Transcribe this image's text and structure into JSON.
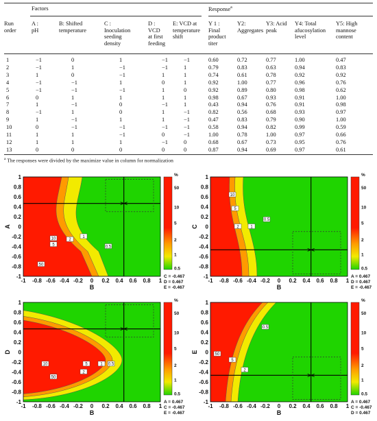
{
  "table": {
    "group_factors": "Factors",
    "group_response": "Response",
    "group_response_sup": "a",
    "col_run": [
      "Run",
      "order"
    ],
    "factors": [
      [
        "A :",
        "pH"
      ],
      [
        "B: Shifted",
        "temperature"
      ],
      [
        "C :",
        "Inoculation",
        "seeding",
        "density"
      ],
      [
        "D :",
        "VCD",
        "at first",
        "feeding"
      ],
      [
        "E: VCD at",
        "temperature",
        "shift"
      ]
    ],
    "responses": [
      [
        "Y 1 :",
        "Final",
        "product",
        "titer"
      ],
      [
        "Y2:",
        "Aggregates"
      ],
      [
        "Y3: Acid",
        "peak"
      ],
      [
        "Y4: Total",
        "afucosylation",
        "level"
      ],
      [
        "Y5: High",
        "mannose",
        "content"
      ]
    ],
    "rows": [
      [
        "1",
        "−1",
        "0",
        "1",
        "−1",
        "−1",
        "0.60",
        "0.72",
        "0.77",
        "1.00",
        "0.47"
      ],
      [
        "2",
        "−1",
        "1",
        "−1",
        "−1",
        "1",
        "0.79",
        "0.83",
        "0.63",
        "0.94",
        "0.83"
      ],
      [
        "3",
        "1",
        "0",
        "−1",
        "1",
        "1",
        "0.74",
        "0.61",
        "0.78",
        "0.92",
        "0.92"
      ],
      [
        "4",
        "−1",
        "−1",
        "1",
        "0",
        "1",
        "0.92",
        "1.00",
        "0.77",
        "0.96",
        "0.76"
      ],
      [
        "5",
        "−1",
        "−1",
        "−1",
        "1",
        "0",
        "0.92",
        "0.89",
        "0.80",
        "0.98",
        "0.62"
      ],
      [
        "6",
        "0",
        "1",
        "1",
        "1",
        "1",
        "0.98",
        "0.67",
        "0.93",
        "0.91",
        "1.00"
      ],
      [
        "7",
        "1",
        "−1",
        "0",
        "−1",
        "1",
        "0.43",
        "0.94",
        "0.76",
        "0.91",
        "0.98"
      ],
      [
        "8",
        "−1",
        "1",
        "0",
        "1",
        "−1",
        "0.82",
        "0.56",
        "0.68",
        "0.93",
        "0.97"
      ],
      [
        "9",
        "1",
        "−1",
        "1",
        "1",
        "−1",
        "0.47",
        "0.83",
        "0.79",
        "0.90",
        "1.00"
      ],
      [
        "10",
        "0",
        "−1",
        "−1",
        "−1",
        "−1",
        "0.58",
        "0.94",
        "0.82",
        "0.99",
        "0.59"
      ],
      [
        "11",
        "1",
        "1",
        "−1",
        "0",
        "−1",
        "1.00",
        "0.78",
        "1.00",
        "0.97",
        "0.66"
      ],
      [
        "12",
        "1",
        "1",
        "1",
        "−1",
        "0",
        "0.68",
        "0.67",
        "0.73",
        "0.95",
        "0.76"
      ],
      [
        "13",
        "0",
        "0",
        "0",
        "0",
        "0",
        "0.87",
        "0.94",
        "0.69",
        "0.97",
        "0.61"
      ]
    ],
    "footnote_sup": "a",
    "footnote": "The responses were divided by the maximize value in column for normalization"
  },
  "colors": {
    "red": "#ff1a00",
    "orange": "#ff9a00",
    "yellow": "#f2ea00",
    "lime": "#9ee600",
    "green": "#1fd400"
  },
  "chart_data": [
    {
      "type": "contour",
      "xlabel": "B",
      "ylabel": "A",
      "xticks": [
        "-1",
        "-0.8",
        "-0.6",
        "-0.4",
        "-0.2",
        "0",
        "0.2",
        "0.4",
        "0.6",
        "0.8",
        "1"
      ],
      "yticks": [
        "-1",
        "-0.8",
        "-0.6",
        "-0.4",
        "-0.2",
        "0",
        "0.2",
        "0.4",
        "0.6",
        "0.8",
        "1"
      ],
      "xlim": [
        -1,
        1
      ],
      "ylim": [
        -1,
        1
      ],
      "cursor": [
        0.467,
        0.467
      ],
      "contour_labels": [
        "50",
        "10",
        "5",
        "2",
        "1",
        "0.5"
      ],
      "colorbar": {
        "unit": "%",
        "ticks": [
          "50",
          "10",
          "5",
          "2",
          "1",
          "0.5"
        ]
      },
      "hold": [
        {
          "k": "C",
          "v": "-0.467"
        },
        {
          "k": "D",
          "v": "0.467"
        },
        {
          "k": "E",
          "v": "-0.467"
        }
      ]
    },
    {
      "type": "contour",
      "xlabel": "B",
      "ylabel": "C",
      "xticks": [
        "-1",
        "-0.8",
        "-0.6",
        "-0.4",
        "-0.2",
        "0",
        "0.2",
        "0.4",
        "0.6",
        "0.8",
        "1"
      ],
      "yticks": [
        "-1",
        "-0.8",
        "-0.6",
        "-0.4",
        "-0.2",
        "0",
        "0.2",
        "0.4",
        "0.6",
        "0.8",
        "1"
      ],
      "xlim": [
        -1,
        1
      ],
      "ylim": [
        -1,
        1
      ],
      "cursor": [
        0.467,
        -0.467
      ],
      "contour_labels": [
        "10",
        "5",
        "2",
        "1",
        "0.5"
      ],
      "colorbar": {
        "unit": "%",
        "ticks": [
          "50",
          "10",
          "5",
          "2",
          "1",
          "0.5"
        ]
      },
      "hold": [
        {
          "k": "A",
          "v": "0.467"
        },
        {
          "k": "D",
          "v": "0.467"
        },
        {
          "k": "E",
          "v": "-0.467"
        }
      ]
    },
    {
      "type": "contour",
      "xlabel": "B",
      "ylabel": "D",
      "xticks": [
        "-1",
        "-0.8",
        "-0.6",
        "-0.4",
        "-0.2",
        "0",
        "0.2",
        "0.4",
        "0.6",
        "0.8",
        "1"
      ],
      "yticks": [
        "-1",
        "-0.8",
        "-0.6",
        "-0.4",
        "-0.2",
        "0",
        "0.2",
        "0.4",
        "0.6",
        "0.8",
        "1"
      ],
      "xlim": [
        -1,
        1
      ],
      "ylim": [
        -1,
        1
      ],
      "cursor": [
        0.467,
        0.467
      ],
      "contour_labels": [
        "10",
        "5",
        "1",
        "0.5",
        "50",
        "2"
      ],
      "colorbar": {
        "unit": "%",
        "ticks": [
          "50",
          "10",
          "5",
          "2",
          "1",
          "0.5"
        ]
      },
      "hold": [
        {
          "k": "A",
          "v": "0.467"
        },
        {
          "k": "C",
          "v": "-0.467"
        },
        {
          "k": "E",
          "v": "-0.467"
        }
      ]
    },
    {
      "type": "contour",
      "xlabel": "B",
      "ylabel": "E",
      "xticks": [
        "-1",
        "-0.8",
        "-0.6",
        "-0.4",
        "-0.2",
        "0",
        "0.2",
        "0.4",
        "0.6",
        "0.8",
        "1"
      ],
      "yticks": [
        "-1",
        "-0.8",
        "-0.6",
        "-0.4",
        "-0.2",
        "0",
        "0.2",
        "0.4",
        "0.6",
        "0.8",
        "1"
      ],
      "xlim": [
        -1,
        1
      ],
      "ylim": [
        -1,
        1
      ],
      "cursor": [
        0.467,
        -0.467
      ],
      "contour_labels": [
        "0.5",
        "50",
        "5",
        "2"
      ],
      "colorbar": {
        "unit": "%",
        "ticks": [
          "50",
          "10",
          "5",
          "2",
          "1",
          "0.5"
        ]
      },
      "hold": [
        {
          "k": "A",
          "v": "0.467"
        },
        {
          "k": "C",
          "v": "-0.467"
        },
        {
          "k": "D",
          "v": "0.467"
        }
      ]
    }
  ]
}
